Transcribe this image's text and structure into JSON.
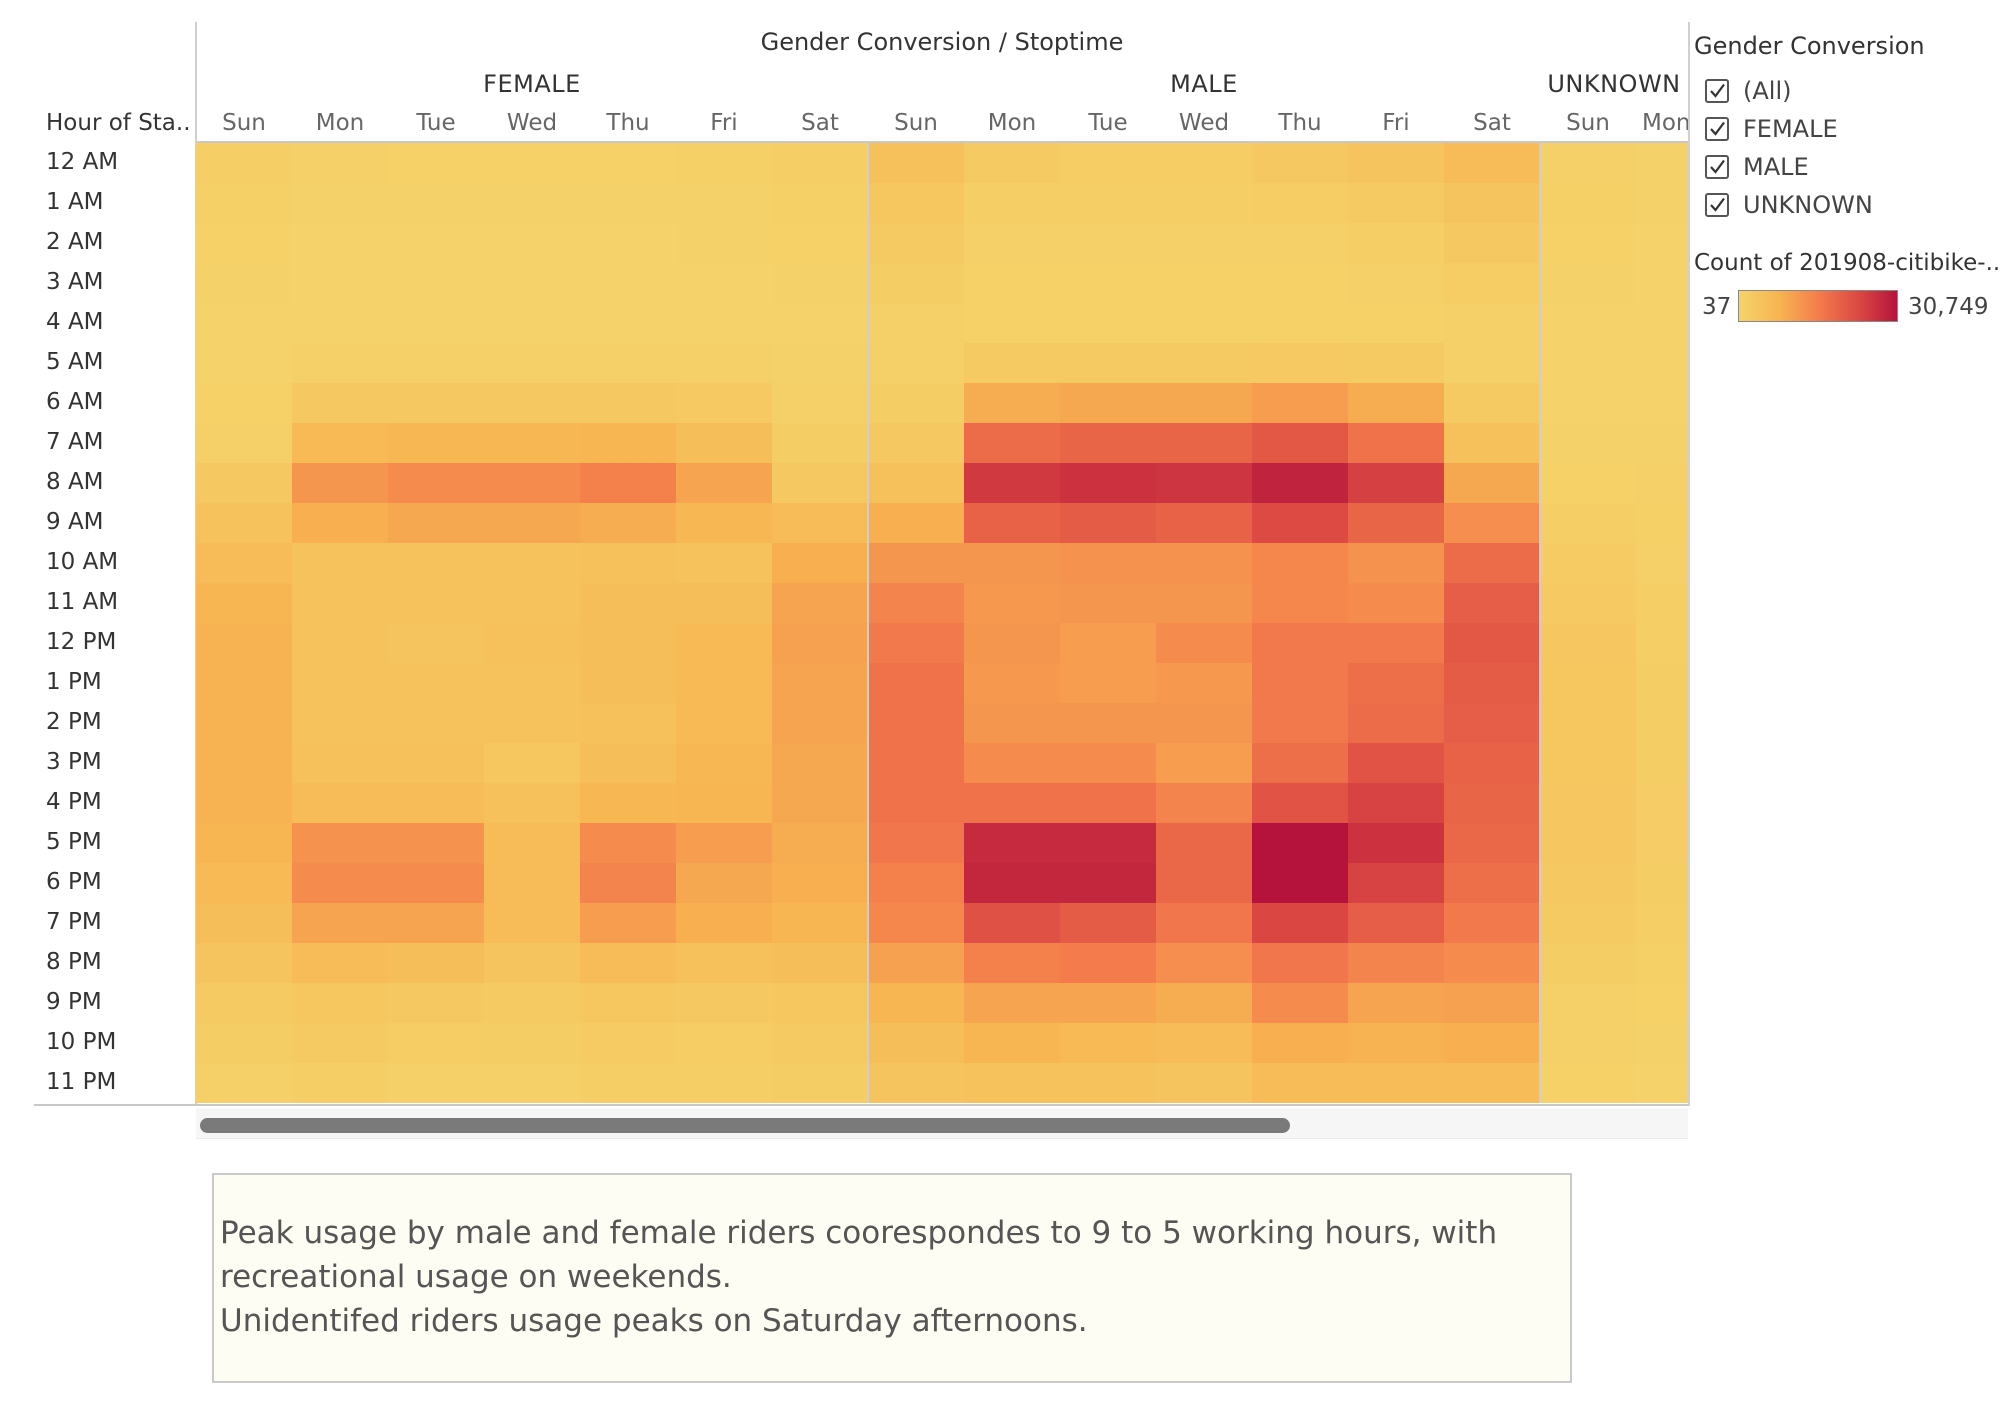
{
  "chart_data": {
    "type": "heatmap",
    "title": "Gender Conversion / Stoptime",
    "row_header": "Hour of Sta..",
    "hours": [
      "12 AM",
      "1 AM",
      "2 AM",
      "3 AM",
      "4 AM",
      "5 AM",
      "6 AM",
      "7 AM",
      "8 AM",
      "9 AM",
      "10 AM",
      "11 AM",
      "12 PM",
      "1 PM",
      "2 PM",
      "3 PM",
      "4 PM",
      "5 PM",
      "6 PM",
      "7 PM",
      "8 PM",
      "9 PM",
      "10 PM",
      "11 PM"
    ],
    "groups": [
      {
        "name": "FEMALE",
        "days": [
          "Sun",
          "Mon",
          "Tue",
          "Wed",
          "Thu",
          "Fri",
          "Sat"
        ]
      },
      {
        "name": "MALE",
        "days": [
          "Sun",
          "Mon",
          "Tue",
          "Wed",
          "Thu",
          "Fri",
          "Sat"
        ]
      },
      {
        "name": "UNKNOWN",
        "days": [
          "Sun",
          "Mon"
        ]
      }
    ],
    "value_range": [
      37,
      30749
    ],
    "values": {
      "FEMALE": [
        [
          1500,
          1000,
          900,
          900,
          900,
          1100,
          1600
        ],
        [
          1100,
          600,
          600,
          600,
          600,
          700,
          1100
        ],
        [
          900,
          400,
          400,
          400,
          400,
          500,
          900
        ],
        [
          600,
          300,
          300,
          300,
          300,
          400,
          700
        ],
        [
          400,
          300,
          300,
          300,
          300,
          300,
          400
        ],
        [
          400,
          1000,
          1000,
          1000,
          1000,
          1000,
          500
        ],
        [
          800,
          3000,
          3000,
          3000,
          3000,
          2800,
          1000
        ],
        [
          1300,
          6500,
          7000,
          7000,
          7500,
          5500,
          1800
        ],
        [
          3000,
          12000,
          13500,
          13500,
          15000,
          10000,
          3000
        ],
        [
          4500,
          8500,
          9500,
          9500,
          9000,
          7000,
          6000
        ],
        [
          6000,
          4500,
          4500,
          4500,
          5000,
          4500,
          8500
        ],
        [
          7500,
          4500,
          4500,
          4500,
          5500,
          5500,
          10000
        ],
        [
          8000,
          4500,
          4000,
          5000,
          5500,
          6500,
          10500
        ],
        [
          8000,
          4500,
          4500,
          4500,
          5500,
          6500,
          10000
        ],
        [
          8000,
          4500,
          4500,
          4500,
          5000,
          6500,
          10000
        ],
        [
          8000,
          5000,
          5000,
          3500,
          5500,
          7000,
          9500
        ],
        [
          8000,
          6000,
          6000,
          5000,
          7000,
          7500,
          9500
        ],
        [
          7500,
          12500,
          12500,
          6000,
          13500,
          11000,
          9000
        ],
        [
          6500,
          13500,
          13500,
          6000,
          14500,
          9500,
          8500
        ],
        [
          5500,
          10000,
          10000,
          6000,
          11000,
          8500,
          7500
        ],
        [
          4000,
          6000,
          5500,
          4000,
          6000,
          5000,
          5500
        ],
        [
          2500,
          3500,
          3000,
          2500,
          3500,
          3000,
          3500
        ],
        [
          1700,
          2500,
          2000,
          1800,
          2200,
          2000,
          2500
        ],
        [
          1200,
          1500,
          1300,
          1200,
          1500,
          1500,
          1800
        ]
      ],
      "MALE": [
        [
          5000,
          2500,
          2000,
          2000,
          3000,
          4000,
          6000
        ],
        [
          3500,
          1500,
          1500,
          1500,
          2000,
          2500,
          4000
        ],
        [
          2500,
          1000,
          1000,
          1000,
          1200,
          1500,
          3000
        ],
        [
          1700,
          800,
          800,
          800,
          900,
          1000,
          2000
        ],
        [
          1200,
          800,
          800,
          800,
          900,
          900,
          1300
        ],
        [
          1000,
          2500,
          2500,
          2500,
          2800,
          2500,
          1200
        ],
        [
          1800,
          9000,
          9500,
          9500,
          11000,
          9000,
          2500
        ],
        [
          3000,
          18000,
          19000,
          19000,
          21000,
          17000,
          5000
        ],
        [
          5000,
          25500,
          26500,
          26000,
          28500,
          24500,
          9500
        ],
        [
          8500,
          19500,
          20500,
          19500,
          23000,
          19000,
          13000
        ],
        [
          12000,
          12000,
          12500,
          12500,
          14000,
          12500,
          18000
        ],
        [
          14500,
          11500,
          12000,
          12000,
          14000,
          13500,
          20000
        ],
        [
          16000,
          12000,
          11000,
          13500,
          16000,
          16000,
          21000
        ],
        [
          17000,
          11500,
          11000,
          11500,
          16000,
          17500,
          20500
        ],
        [
          17000,
          12000,
          12000,
          12000,
          16000,
          18000,
          20000
        ],
        [
          17000,
          13500,
          13500,
          11000,
          17500,
          21500,
          19500
        ],
        [
          17000,
          17000,
          17000,
          14500,
          21500,
          24000,
          19000
        ],
        [
          16500,
          27500,
          27500,
          18500,
          30749,
          26500,
          18500
        ],
        [
          15000,
          28000,
          28000,
          18500,
          30749,
          24000,
          17500
        ],
        [
          14000,
          22000,
          20500,
          16500,
          23500,
          20000,
          16000
        ],
        [
          10500,
          15000,
          15500,
          13000,
          16500,
          14500,
          13500
        ],
        [
          7500,
          10000,
          10000,
          9000,
          13500,
          10000,
          10500
        ],
        [
          5500,
          7500,
          6500,
          6000,
          8500,
          8000,
          8500
        ],
        [
          4000,
          4500,
          4500,
          4000,
          6000,
          6000,
          6000
        ]
      ],
      "UNKNOWN": [
        [
          1300,
          700
        ],
        [
          1100,
          500
        ],
        [
          800,
          400
        ],
        [
          600,
          300
        ],
        [
          400,
          300
        ],
        [
          300,
          300
        ],
        [
          400,
          300
        ],
        [
          600,
          600
        ],
        [
          900,
          1000
        ],
        [
          1400,
          1100
        ],
        [
          2300,
          1200
        ],
        [
          2800,
          1400
        ],
        [
          3200,
          1600
        ],
        [
          3500,
          1700
        ],
        [
          3600,
          1800
        ],
        [
          3600,
          1800
        ],
        [
          3400,
          1900
        ],
        [
          3200,
          1900
        ],
        [
          2900,
          1700
        ],
        [
          2400,
          1500
        ],
        [
          1800,
          1100
        ],
        [
          1300,
          800
        ],
        [
          1000,
          600
        ],
        [
          800,
          400
        ]
      ]
    }
  },
  "legend": {
    "title": "Gender Conversion",
    "items": [
      {
        "label": "(All)",
        "checked": true
      },
      {
        "label": "FEMALE",
        "checked": true
      },
      {
        "label": "MALE",
        "checked": true
      },
      {
        "label": "UNKNOWN",
        "checked": true
      }
    ],
    "color_title": "Count of 201908-citibike-..",
    "min_label": "37",
    "max_label": "30,749",
    "color_stops": [
      "#f5d46b",
      "#f7b551",
      "#f47d4c",
      "#dc4a43",
      "#b5133b"
    ]
  },
  "annotation": {
    "lines": [
      "Peak usage by male and female riders coorespondes to 9 to 5 working hours, with",
      "recreational usage on weekends.",
      "Unidentifed riders usage peaks on Saturday afternoons."
    ]
  }
}
